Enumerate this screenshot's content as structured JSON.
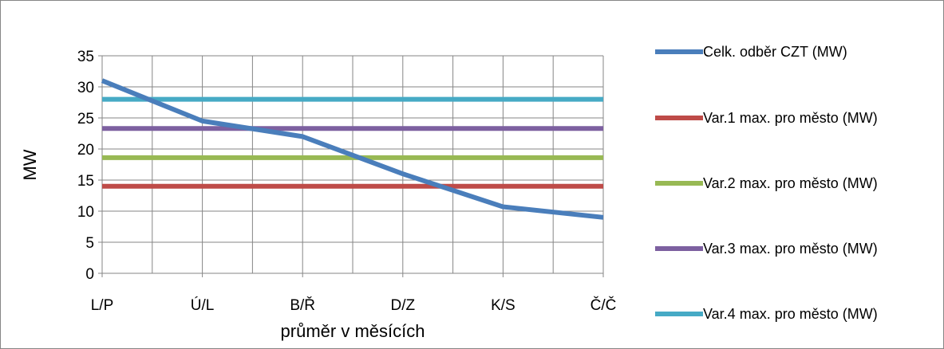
{
  "chart_data": {
    "type": "line",
    "title": "",
    "xlabel": "průměr v měsících",
    "ylabel": "MW",
    "categories": [
      "L/P",
      "Ú/L",
      "B/Ř",
      "D/Z",
      "K/S",
      "Č/Č"
    ],
    "ylim": [
      0,
      35
    ],
    "yticks": [
      0,
      5,
      10,
      15,
      20,
      25,
      30,
      35
    ],
    "grid": true,
    "legend_position": "right",
    "series": [
      {
        "name": "Celk. odběr CZT (MW)",
        "color": "#4a7ebb",
        "values": [
          31.0,
          24.5,
          22.0,
          16.0,
          10.7,
          9.0
        ]
      },
      {
        "name": "Var.1 max. pro město (MW)",
        "color": "#be4b48",
        "values": [
          14.0,
          14.0,
          14.0,
          14.0,
          14.0,
          14.0
        ]
      },
      {
        "name": "Var.2 max. pro město (MW)",
        "color": "#98b954",
        "values": [
          18.6,
          18.6,
          18.6,
          18.6,
          18.6,
          18.6
        ]
      },
      {
        "name": "Var.3 max. pro město (MW)",
        "color": "#7d60a0",
        "values": [
          23.3,
          23.3,
          23.3,
          23.3,
          23.3,
          23.3
        ]
      },
      {
        "name": "Var.4 max. pro město (MW)",
        "color": "#46aac5",
        "values": [
          28.0,
          28.0,
          28.0,
          28.0,
          28.0,
          28.0
        ]
      }
    ]
  }
}
